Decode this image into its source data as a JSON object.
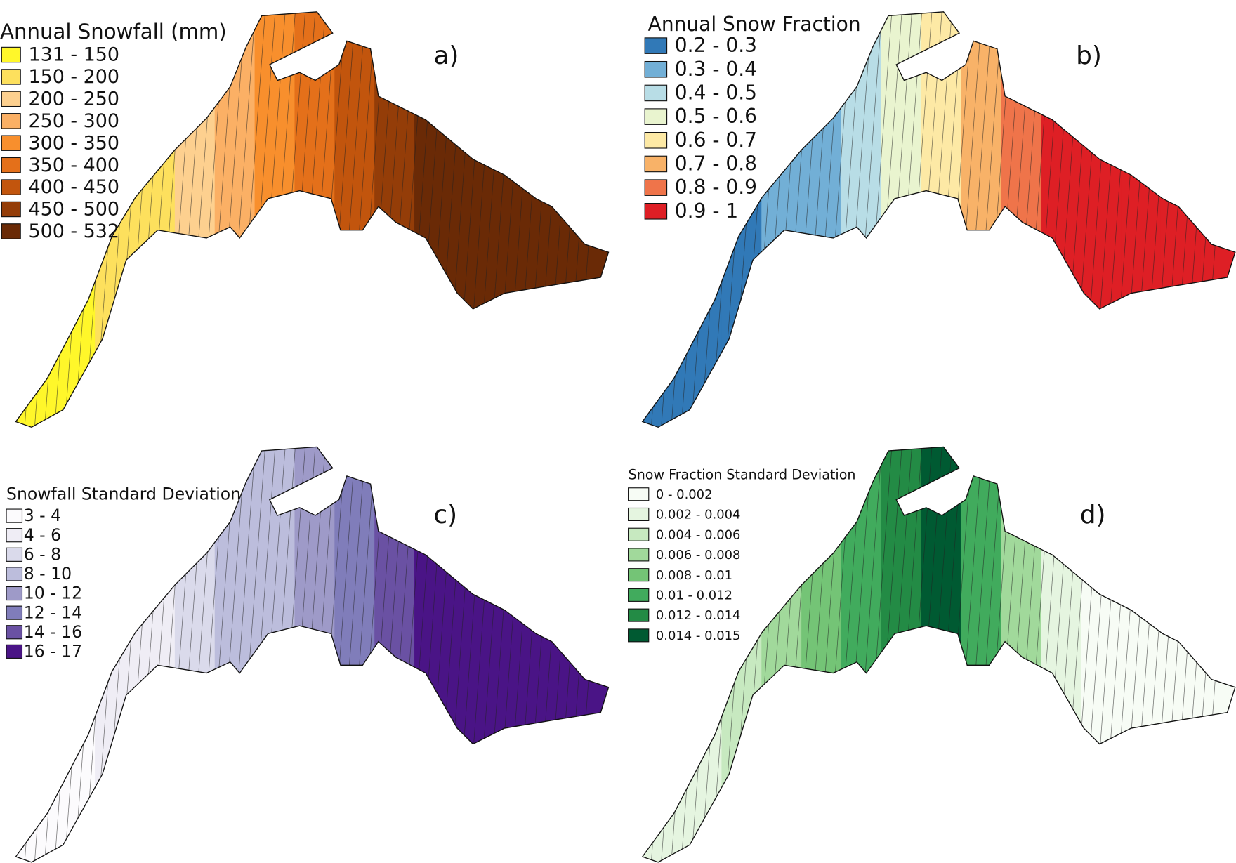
{
  "panels": [
    {
      "label": "a)",
      "legend_title": "Annual Snowfall (mm)",
      "legend": [
        {
          "label": "131 - 150",
          "color": "#fff72a"
        },
        {
          "label": "150 - 200",
          "color": "#fde05d"
        },
        {
          "label": "200 - 250",
          "color": "#fdd08f"
        },
        {
          "label": "250 - 300",
          "color": "#fbb065"
        },
        {
          "label": "300 - 350",
          "color": "#f88f2d"
        },
        {
          "label": "350 - 400",
          "color": "#e4701a"
        },
        {
          "label": "400 - 450",
          "color": "#c2550d"
        },
        {
          "label": "450 - 500",
          "color": "#943d08"
        },
        {
          "label": "500 - 532",
          "color": "#6a2a06"
        }
      ]
    },
    {
      "label": "b)",
      "legend_title": "Annual Snow Fraction",
      "legend": [
        {
          "label": "0.2 - 0.3",
          "color": "#3179b7"
        },
        {
          "label": "0.3 - 0.4",
          "color": "#72afd6"
        },
        {
          "label": "0.4 - 0.5",
          "color": "#b8dde6"
        },
        {
          "label": "0.5 - 0.6",
          "color": "#e9f4cf"
        },
        {
          "label": "0.6 - 0.7",
          "color": "#fde9a5"
        },
        {
          "label": "0.7 - 0.8",
          "color": "#f8b268"
        },
        {
          "label": "0.8 - 0.9",
          "color": "#ef744a"
        },
        {
          "label": "0.9 - 1",
          "color": "#de1f25"
        }
      ]
    },
    {
      "label": "c)",
      "legend_title": "Snowfall Standard Deviation",
      "legend": [
        {
          "label": "3 - 4",
          "color": "#fcfbfd"
        },
        {
          "label": "4 - 6",
          "color": "#efedf5"
        },
        {
          "label": "6 - 8",
          "color": "#dadaeb"
        },
        {
          "label": "8 - 10",
          "color": "#bcbddc"
        },
        {
          "label": "10 - 12",
          "color": "#9e9ac8"
        },
        {
          "label": "12 - 14",
          "color": "#807dba"
        },
        {
          "label": "14 - 16",
          "color": "#6a51a3"
        },
        {
          "label": "16 - 17",
          "color": "#4a1486"
        }
      ]
    },
    {
      "label": "d)",
      "legend_title": "Snow Fraction Standard Deviation",
      "legend": [
        {
          "label": "0 - 0.002",
          "color": "#f7fcf5"
        },
        {
          "label": "0.002 - 0.004",
          "color": "#e5f5e0"
        },
        {
          "label": "0.004 - 0.006",
          "color": "#c7e9c0"
        },
        {
          "label": "0.006 - 0.008",
          "color": "#a1d99b"
        },
        {
          "label": "0.008 - 0.01",
          "color": "#74c476"
        },
        {
          "label": "0.01 - 0.012",
          "color": "#41ab5d"
        },
        {
          "label": "0.012 - 0.014",
          "color": "#238b45"
        },
        {
          "label": "0.014 - 0.015",
          "color": "#005a32"
        }
      ]
    }
  ]
}
